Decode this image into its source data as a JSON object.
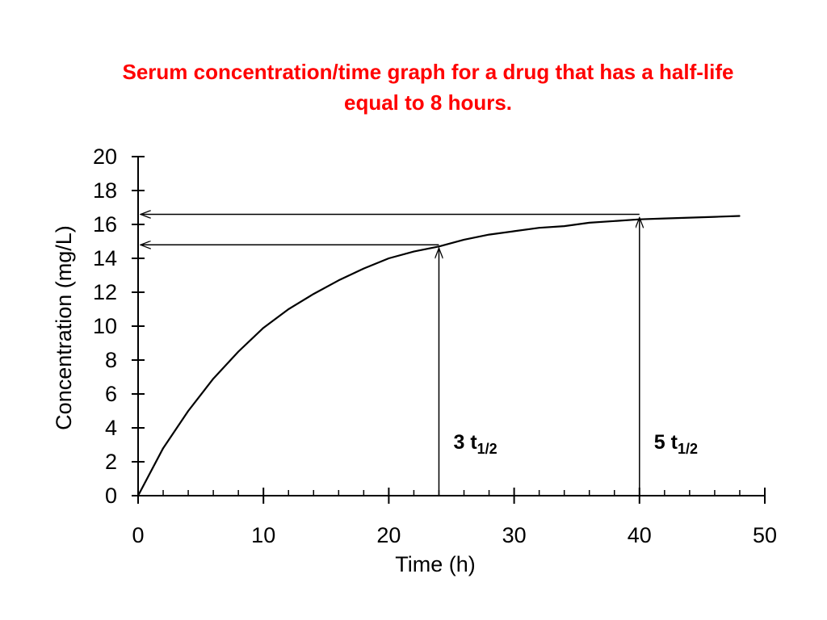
{
  "title": {
    "line1": "Serum concentration/time graph for a drug that has a half-life",
    "line2": "equal to 8 hours."
  },
  "colors": {
    "title": "#ff0000",
    "ink": "#000000",
    "background": "#ffffff"
  },
  "chart_data": {
    "type": "line",
    "xlabel": "Time (h)",
    "ylabel": "Concentration (mg/L)",
    "xlim": [
      0,
      50
    ],
    "ylim": [
      0,
      20
    ],
    "x_ticks": [
      0,
      10,
      20,
      30,
      40,
      50
    ],
    "y_ticks": [
      0,
      2,
      4,
      6,
      8,
      10,
      12,
      14,
      16,
      18,
      20
    ],
    "x_minor_step": 2,
    "grid": false,
    "legend": "none",
    "series": [
      {
        "x": [
          0,
          2,
          4,
          6,
          8,
          10,
          12,
          14,
          16,
          18,
          20,
          22,
          24,
          26,
          28,
          30,
          32,
          34,
          36,
          38,
          40,
          42,
          44,
          46,
          48
        ],
        "y": [
          0,
          2.8,
          5.0,
          6.9,
          8.5,
          9.9,
          11.0,
          11.9,
          12.7,
          13.4,
          14.0,
          14.4,
          14.7,
          15.1,
          15.4,
          15.6,
          15.8,
          15.9,
          16.1,
          16.2,
          16.3,
          16.35,
          16.4,
          16.45,
          16.5
        ]
      }
    ],
    "annotations": [
      {
        "label": "3 t",
        "subscript": "1/2",
        "x": 24,
        "y": 14.7
      },
      {
        "label": "5 t",
        "subscript": "1/2",
        "x": 40,
        "y": 16.5
      }
    ]
  }
}
